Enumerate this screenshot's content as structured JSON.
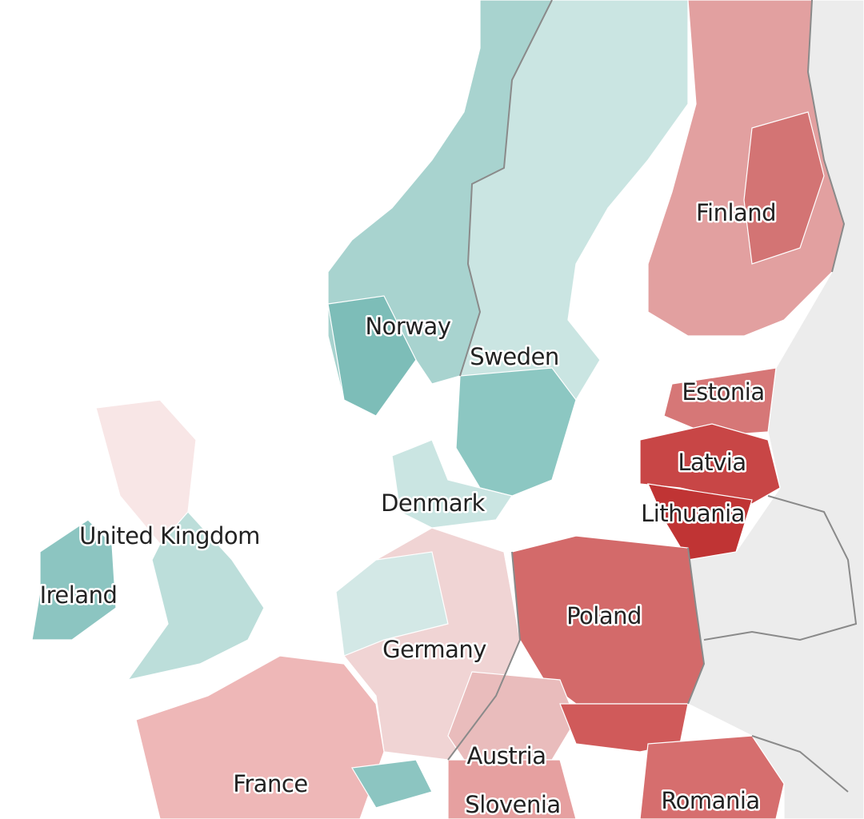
{
  "labels": {
    "finland": "Finland",
    "norway": "Norway",
    "sweden": "Sweden",
    "estonia": "Estonia",
    "latvia": "Latvia",
    "lithuania": "Lithuania",
    "denmark": "Denmark",
    "united_kingdom": "United Kingdom",
    "ireland": "Ireland",
    "poland": "Poland",
    "germany": "Germany",
    "austria": "Austria",
    "france": "France",
    "slovenia": "Slovenia",
    "romania": "Romania"
  }
}
